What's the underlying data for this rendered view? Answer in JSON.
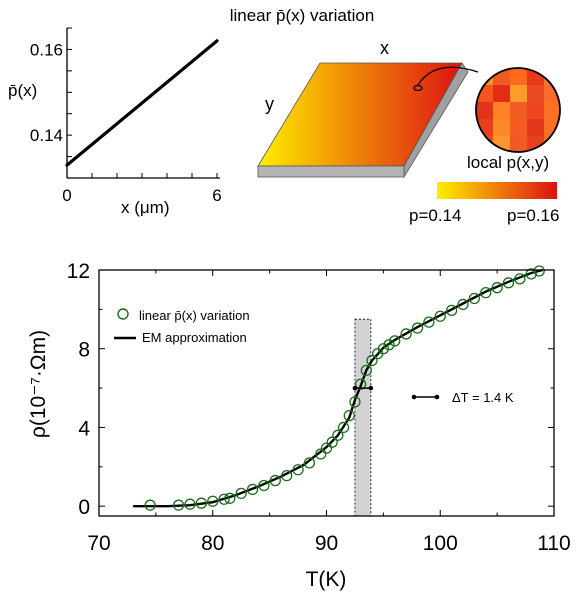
{
  "figure": {
    "top_title": "linear p̄(x) variation",
    "slab_x_label": "x",
    "slab_y_label": "y",
    "local_label": "local p(x,y)",
    "colorbar_low_label": "p=0.14",
    "colorbar_high_label": "p=0.16",
    "colorbar_low_color": "#ffee00",
    "colorbar_high_color": "#dd1111",
    "slab_side_color": "#b4b4b4",
    "zoom_colors": [
      "#ff8f1f",
      "#f05a23",
      "#ff6a1d",
      "#e73a1a",
      "#ff7a24",
      "#f4551f",
      "#e42c15",
      "#ff9b2a",
      "#ea4a22",
      "#fb6b2b",
      "#e23517",
      "#ff8226",
      "#f25d24",
      "#ef4420",
      "#ff7023",
      "#e93d1c",
      "#fd8829",
      "#f75b24",
      "#e5381a",
      "#ff6f23",
      "#ec4d22",
      "#ff9430",
      "#f25a25",
      "#e6401c",
      "#fa6a25"
    ]
  },
  "chart_data": [
    {
      "type": "line",
      "ylabel": "p̄(x)",
      "xlabel": "x (μm)",
      "xlim": [
        0,
        6
      ],
      "ylim": [
        0.13,
        0.165
      ],
      "x_ticks": [
        0,
        6
      ],
      "y_ticks": [
        0.14,
        0.16
      ],
      "series": [
        {
          "x": [
            0,
            6
          ],
          "y": [
            0.133,
            0.162
          ]
        }
      ]
    },
    {
      "type": "scatter",
      "xlabel": "T(K)",
      "ylabel": "ρ(10⁻⁷·Ωm)",
      "xlim": [
        70,
        110
      ],
      "ylim": [
        -0.5,
        12
      ],
      "x_ticks": [
        70,
        80,
        90,
        100,
        110
      ],
      "y_ticks": [
        0,
        4,
        8,
        12
      ],
      "grid": false,
      "legend_position": "top-left",
      "annotation": "ΔT = 1.4 K",
      "transition_band": [
        92.5,
        93.9
      ],
      "transition_level": 6,
      "series": [
        {
          "name": "linear p̄(x) variation",
          "marker": "open-circle",
          "color": "#1a6e1a",
          "x": [
            74.5,
            77.0,
            78.0,
            79.0,
            80.0,
            81.0,
            81.5,
            82.5,
            83.5,
            84.5,
            85.5,
            86.5,
            87.5,
            88.5,
            89.5,
            90.0,
            90.5,
            91.0,
            91.5,
            92.0,
            92.5,
            93.0,
            93.5,
            94.0,
            94.5,
            95.0,
            95.5,
            96.0,
            97.0,
            98.0,
            99.0,
            100.0,
            101.0,
            102.0,
            103.0,
            104.0,
            105.0,
            106.0,
            107.0,
            108.0,
            108.7
          ],
          "y": [
            0.05,
            0.05,
            0.1,
            0.15,
            0.25,
            0.35,
            0.4,
            0.65,
            0.85,
            1.05,
            1.3,
            1.55,
            1.85,
            2.2,
            2.65,
            2.95,
            3.25,
            3.6,
            4.0,
            4.6,
            5.3,
            6.2,
            6.9,
            7.4,
            7.75,
            8.0,
            8.2,
            8.4,
            8.75,
            9.05,
            9.35,
            9.65,
            9.95,
            10.25,
            10.55,
            10.85,
            11.1,
            11.35,
            11.55,
            11.8,
            11.95
          ]
        },
        {
          "name": "EM approximation",
          "color": "#000000",
          "x": [
            73.0,
            76.0,
            78.0,
            80.0,
            82.0,
            84.0,
            86.0,
            88.0,
            90.0,
            91.0,
            92.0,
            92.5,
            93.0,
            93.5,
            94.0,
            95.0,
            96.0,
            98.0,
            100.0,
            102.0,
            104.0,
            106.0,
            108.0,
            109.0
          ],
          "y": [
            0.0,
            0.0,
            0.05,
            0.2,
            0.55,
            1.0,
            1.5,
            2.1,
            3.0,
            3.6,
            4.5,
            5.4,
            6.1,
            6.9,
            7.4,
            8.05,
            8.45,
            9.1,
            9.7,
            10.3,
            10.9,
            11.4,
            11.85,
            12.0
          ]
        }
      ]
    }
  ]
}
